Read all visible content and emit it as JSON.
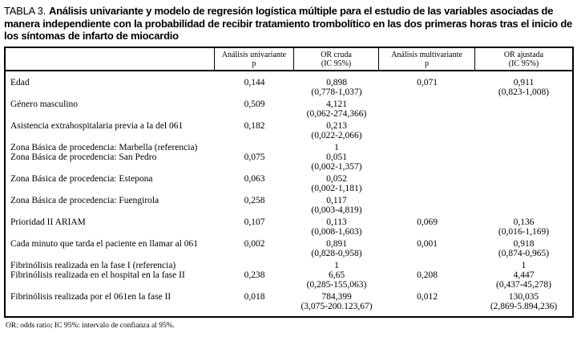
{
  "title": {
    "prefix": "TABLA 3.",
    "bold": "Análisis univariante y modelo de regresión logística múltiple para el estudio de las variables asociadas de manera independiente con la probabilidad de recibir tratamiento trombolítico en las dos primeras horas tras el inicio de los síntomas de infarto de miocardio"
  },
  "table": {
    "headers": [
      {
        "line1": "",
        "line2": ""
      },
      {
        "line1": "Análisis univariante",
        "line2": "p"
      },
      {
        "line1": "OR cruda",
        "line2": "(IC 95%)"
      },
      {
        "line1": "Análisis multivariante",
        "line2": "p"
      },
      {
        "line1": "OR ajustada",
        "line2": "(IC 95%)"
      }
    ],
    "rows": [
      {
        "label": "Edad",
        "p_univariante": "0,144",
        "or_cruda": "0,898",
        "ic_cruda": "(0,778-1,037)",
        "p_multivariante": "0,071",
        "or_ajustada": "0,911",
        "ic_ajustada": "(0,823-1,008)",
        "attached": false
      },
      {
        "label": "Género masculino",
        "p_univariante": "0,509",
        "or_cruda": "4,121",
        "ic_cruda": "(0,062-274,366)",
        "p_multivariante": "",
        "or_ajustada": "",
        "ic_ajustada": "",
        "attached": false
      },
      {
        "label": "Asistencia extrahospitalaria previa a la del 061",
        "p_univariante": "0,182",
        "or_cruda": "0,213",
        "ic_cruda": "(0,022-2,066)",
        "p_multivariante": "",
        "or_ajustada": "",
        "ic_ajustada": "",
        "attached": false
      },
      {
        "label": "Zona Básica de procedencia: Marbella (referencia)",
        "p_univariante": "",
        "or_cruda": "1",
        "ic_cruda": "",
        "p_multivariante": "",
        "or_ajustada": "",
        "ic_ajustada": "",
        "attached": false
      },
      {
        "label": "Zona Básica de procedencia: San Pedro",
        "p_univariante": "0,075",
        "or_cruda": "0,051",
        "ic_cruda": "(0,002-1,357)",
        "p_multivariante": "",
        "or_ajustada": "",
        "ic_ajustada": "",
        "attached": true
      },
      {
        "label": "Zona Básica de procedencia: Estepona",
        "p_univariante": "0,063",
        "or_cruda": "0,052",
        "ic_cruda": "(0,002-1,181)",
        "p_multivariante": "",
        "or_ajustada": "",
        "ic_ajustada": "",
        "attached": false
      },
      {
        "label": "Zona Básica de procedencia: Fuengirola",
        "p_univariante": "0,258",
        "or_cruda": "0,117",
        "ic_cruda": "(0,003-4,819)",
        "p_multivariante": "",
        "or_ajustada": "",
        "ic_ajustada": "",
        "attached": false
      },
      {
        "label": "Prioridad II ARIAM",
        "p_univariante": "0,107",
        "or_cruda": "0,113",
        "ic_cruda": "(0,008-1,603)",
        "p_multivariante": "0,069",
        "or_ajustada": "0,136",
        "ic_ajustada": "(0,016-1,169)",
        "attached": false
      },
      {
        "label": "Cada minuto que tarda el paciente en llamar al 061",
        "p_univariante": "0,002",
        "or_cruda": "0,891",
        "ic_cruda": "(0,828-0,958)",
        "p_multivariante": "0,001",
        "or_ajustada": "0,918",
        "ic_ajustada": "(0,874-0,965)",
        "attached": false
      },
      {
        "label": "Fibrinólisis realizada en la fase I (referencia)",
        "p_univariante": "",
        "or_cruda": "1",
        "ic_cruda": "",
        "p_multivariante": "",
        "or_ajustada": "1",
        "ic_ajustada": "",
        "attached": false
      },
      {
        "label": "Fibrinólisis realizada en el hospital en la fase II",
        "p_univariante": "0,238",
        "or_cruda": "6,65",
        "ic_cruda": "(0,285-155,063)",
        "p_multivariante": "0,208",
        "or_ajustada": "4,447",
        "ic_ajustada": "(0,437-45,278)",
        "attached": true
      },
      {
        "label": "Fibrinólisis realizada por el 061en la fase II",
        "p_univariante": "0,018",
        "or_cruda": "784,399",
        "ic_cruda": "(3,075-200.123,67)",
        "p_multivariante": "0,012",
        "or_ajustada": "130,035",
        "ic_ajustada": "(2,869-5.894,236)",
        "attached": false
      }
    ]
  },
  "footnote": "OR: odds ratio; IC 95%: intervalo de confianza al 95%."
}
